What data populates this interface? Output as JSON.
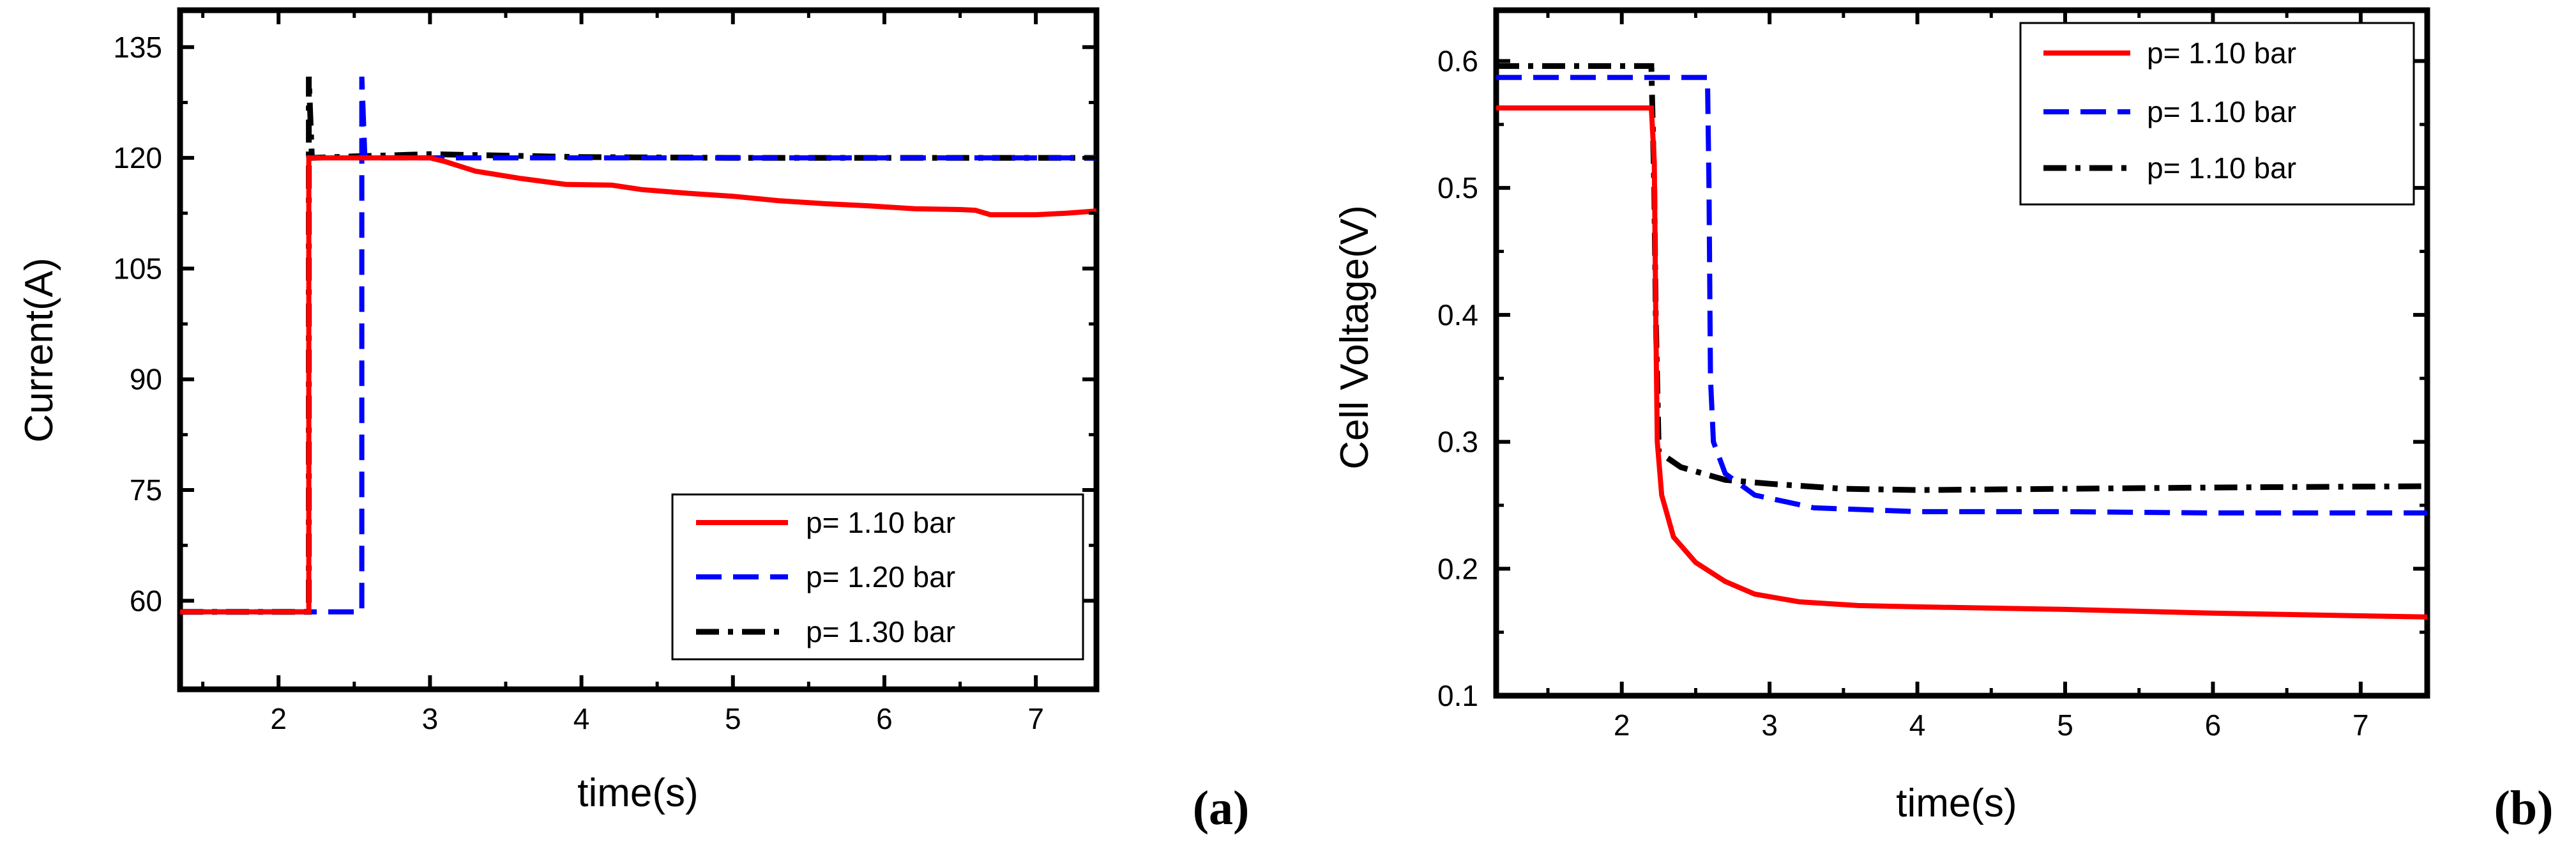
{
  "chart_data": [
    {
      "type": "line",
      "panel_label": "(a)",
      "xlabel": "time(s)",
      "ylabel": "Current(A)",
      "xlim": [
        1.35,
        7.4
      ],
      "ylim": [
        48,
        140
      ],
      "xticks": [
        2,
        3,
        4,
        5,
        6,
        7
      ],
      "yticks": [
        60,
        75,
        90,
        105,
        120,
        135
      ],
      "legend_position": "bottom-right",
      "series": [
        {
          "name": "p= 1.10 bar",
          "color": "#ff0000",
          "style": "solid",
          "points": [
            [
              1.35,
              58.5
            ],
            [
              2.2,
              58.5
            ],
            [
              2.2,
              120
            ],
            [
              2.6,
              120
            ],
            [
              3.0,
              120
            ],
            [
              3.1,
              119.5
            ],
            [
              3.3,
              118.2
            ],
            [
              3.6,
              117.2
            ],
            [
              3.9,
              116.4
            ],
            [
              4.2,
              116.3
            ],
            [
              4.4,
              115.7
            ],
            [
              4.7,
              115.2
            ],
            [
              5.0,
              114.8
            ],
            [
              5.3,
              114.2
            ],
            [
              5.6,
              113.8
            ],
            [
              5.9,
              113.5
            ],
            [
              6.2,
              113.1
            ],
            [
              6.5,
              113.0
            ],
            [
              6.6,
              112.9
            ],
            [
              6.7,
              112.3
            ],
            [
              7.0,
              112.3
            ],
            [
              7.2,
              112.5
            ],
            [
              7.4,
              112.8
            ]
          ]
        },
        {
          "name": "p= 1.20 bar",
          "color": "#0000ff",
          "style": "dashed",
          "points": [
            [
              1.35,
              58.5
            ],
            [
              2.55,
              58.5
            ],
            [
              2.55,
              131
            ],
            [
              2.57,
              120
            ],
            [
              3.0,
              120
            ],
            [
              4.0,
              120
            ],
            [
              5.0,
              120
            ],
            [
              6.0,
              120
            ],
            [
              7.4,
              120
            ]
          ]
        },
        {
          "name": "p= 1.30 bar",
          "color": "#000000",
          "style": "dashdot",
          "points": [
            [
              1.35,
              58.5
            ],
            [
              2.2,
              58.5
            ],
            [
              2.2,
              131
            ],
            [
              2.22,
              120
            ],
            [
              2.5,
              120.2
            ],
            [
              3.0,
              120.5
            ],
            [
              4.0,
              120.1
            ],
            [
              5.0,
              120
            ],
            [
              6.0,
              120
            ],
            [
              7.4,
              120
            ]
          ]
        }
      ]
    },
    {
      "type": "line",
      "panel_label": "(b)",
      "xlabel": "time(s)",
      "ylabel": "Cell Voltage(V)",
      "xlim": [
        1.15,
        7.45
      ],
      "ylim": [
        0.1,
        0.64
      ],
      "xticks": [
        2,
        3,
        4,
        5,
        6,
        7
      ],
      "yticks": [
        0.1,
        0.2,
        0.3,
        0.4,
        0.5,
        0.6
      ],
      "legend_position": "top-right",
      "series": [
        {
          "name": "p= 1.10 bar",
          "color": "#ff0000",
          "style": "solid",
          "points": [
            [
              1.15,
              0.563
            ],
            [
              2.2,
              0.563
            ],
            [
              2.22,
              0.52
            ],
            [
              2.23,
              0.4
            ],
            [
              2.24,
              0.3
            ],
            [
              2.27,
              0.258
            ],
            [
              2.35,
              0.225
            ],
            [
              2.5,
              0.205
            ],
            [
              2.7,
              0.19
            ],
            [
              2.9,
              0.18
            ],
            [
              3.2,
              0.174
            ],
            [
              3.6,
              0.171
            ],
            [
              4.0,
              0.17
            ],
            [
              5.0,
              0.168
            ],
            [
              6.0,
              0.165
            ],
            [
              7.45,
              0.162
            ]
          ]
        },
        {
          "name": "p= 1.10 bar",
          "color": "#0000ff",
          "style": "dashed",
          "points": [
            [
              1.15,
              0.587
            ],
            [
              2.58,
              0.587
            ],
            [
              2.59,
              0.5
            ],
            [
              2.6,
              0.35
            ],
            [
              2.62,
              0.3
            ],
            [
              2.7,
              0.275
            ],
            [
              2.9,
              0.258
            ],
            [
              3.3,
              0.248
            ],
            [
              4.0,
              0.245
            ],
            [
              5.0,
              0.245
            ],
            [
              6.0,
              0.244
            ],
            [
              7.45,
              0.244
            ]
          ]
        },
        {
          "name": "p= 1.10 bar",
          "color": "#000000",
          "style": "dashdot",
          "points": [
            [
              1.15,
              0.596
            ],
            [
              2.2,
              0.596
            ],
            [
              2.22,
              0.5
            ],
            [
              2.23,
              0.4
            ],
            [
              2.25,
              0.292
            ],
            [
              2.4,
              0.28
            ],
            [
              2.7,
              0.27
            ],
            [
              3.0,
              0.267
            ],
            [
              3.5,
              0.263
            ],
            [
              4.0,
              0.262
            ],
            [
              5.0,
              0.263
            ],
            [
              6.0,
              0.264
            ],
            [
              7.45,
              0.265
            ]
          ]
        }
      ]
    }
  ]
}
